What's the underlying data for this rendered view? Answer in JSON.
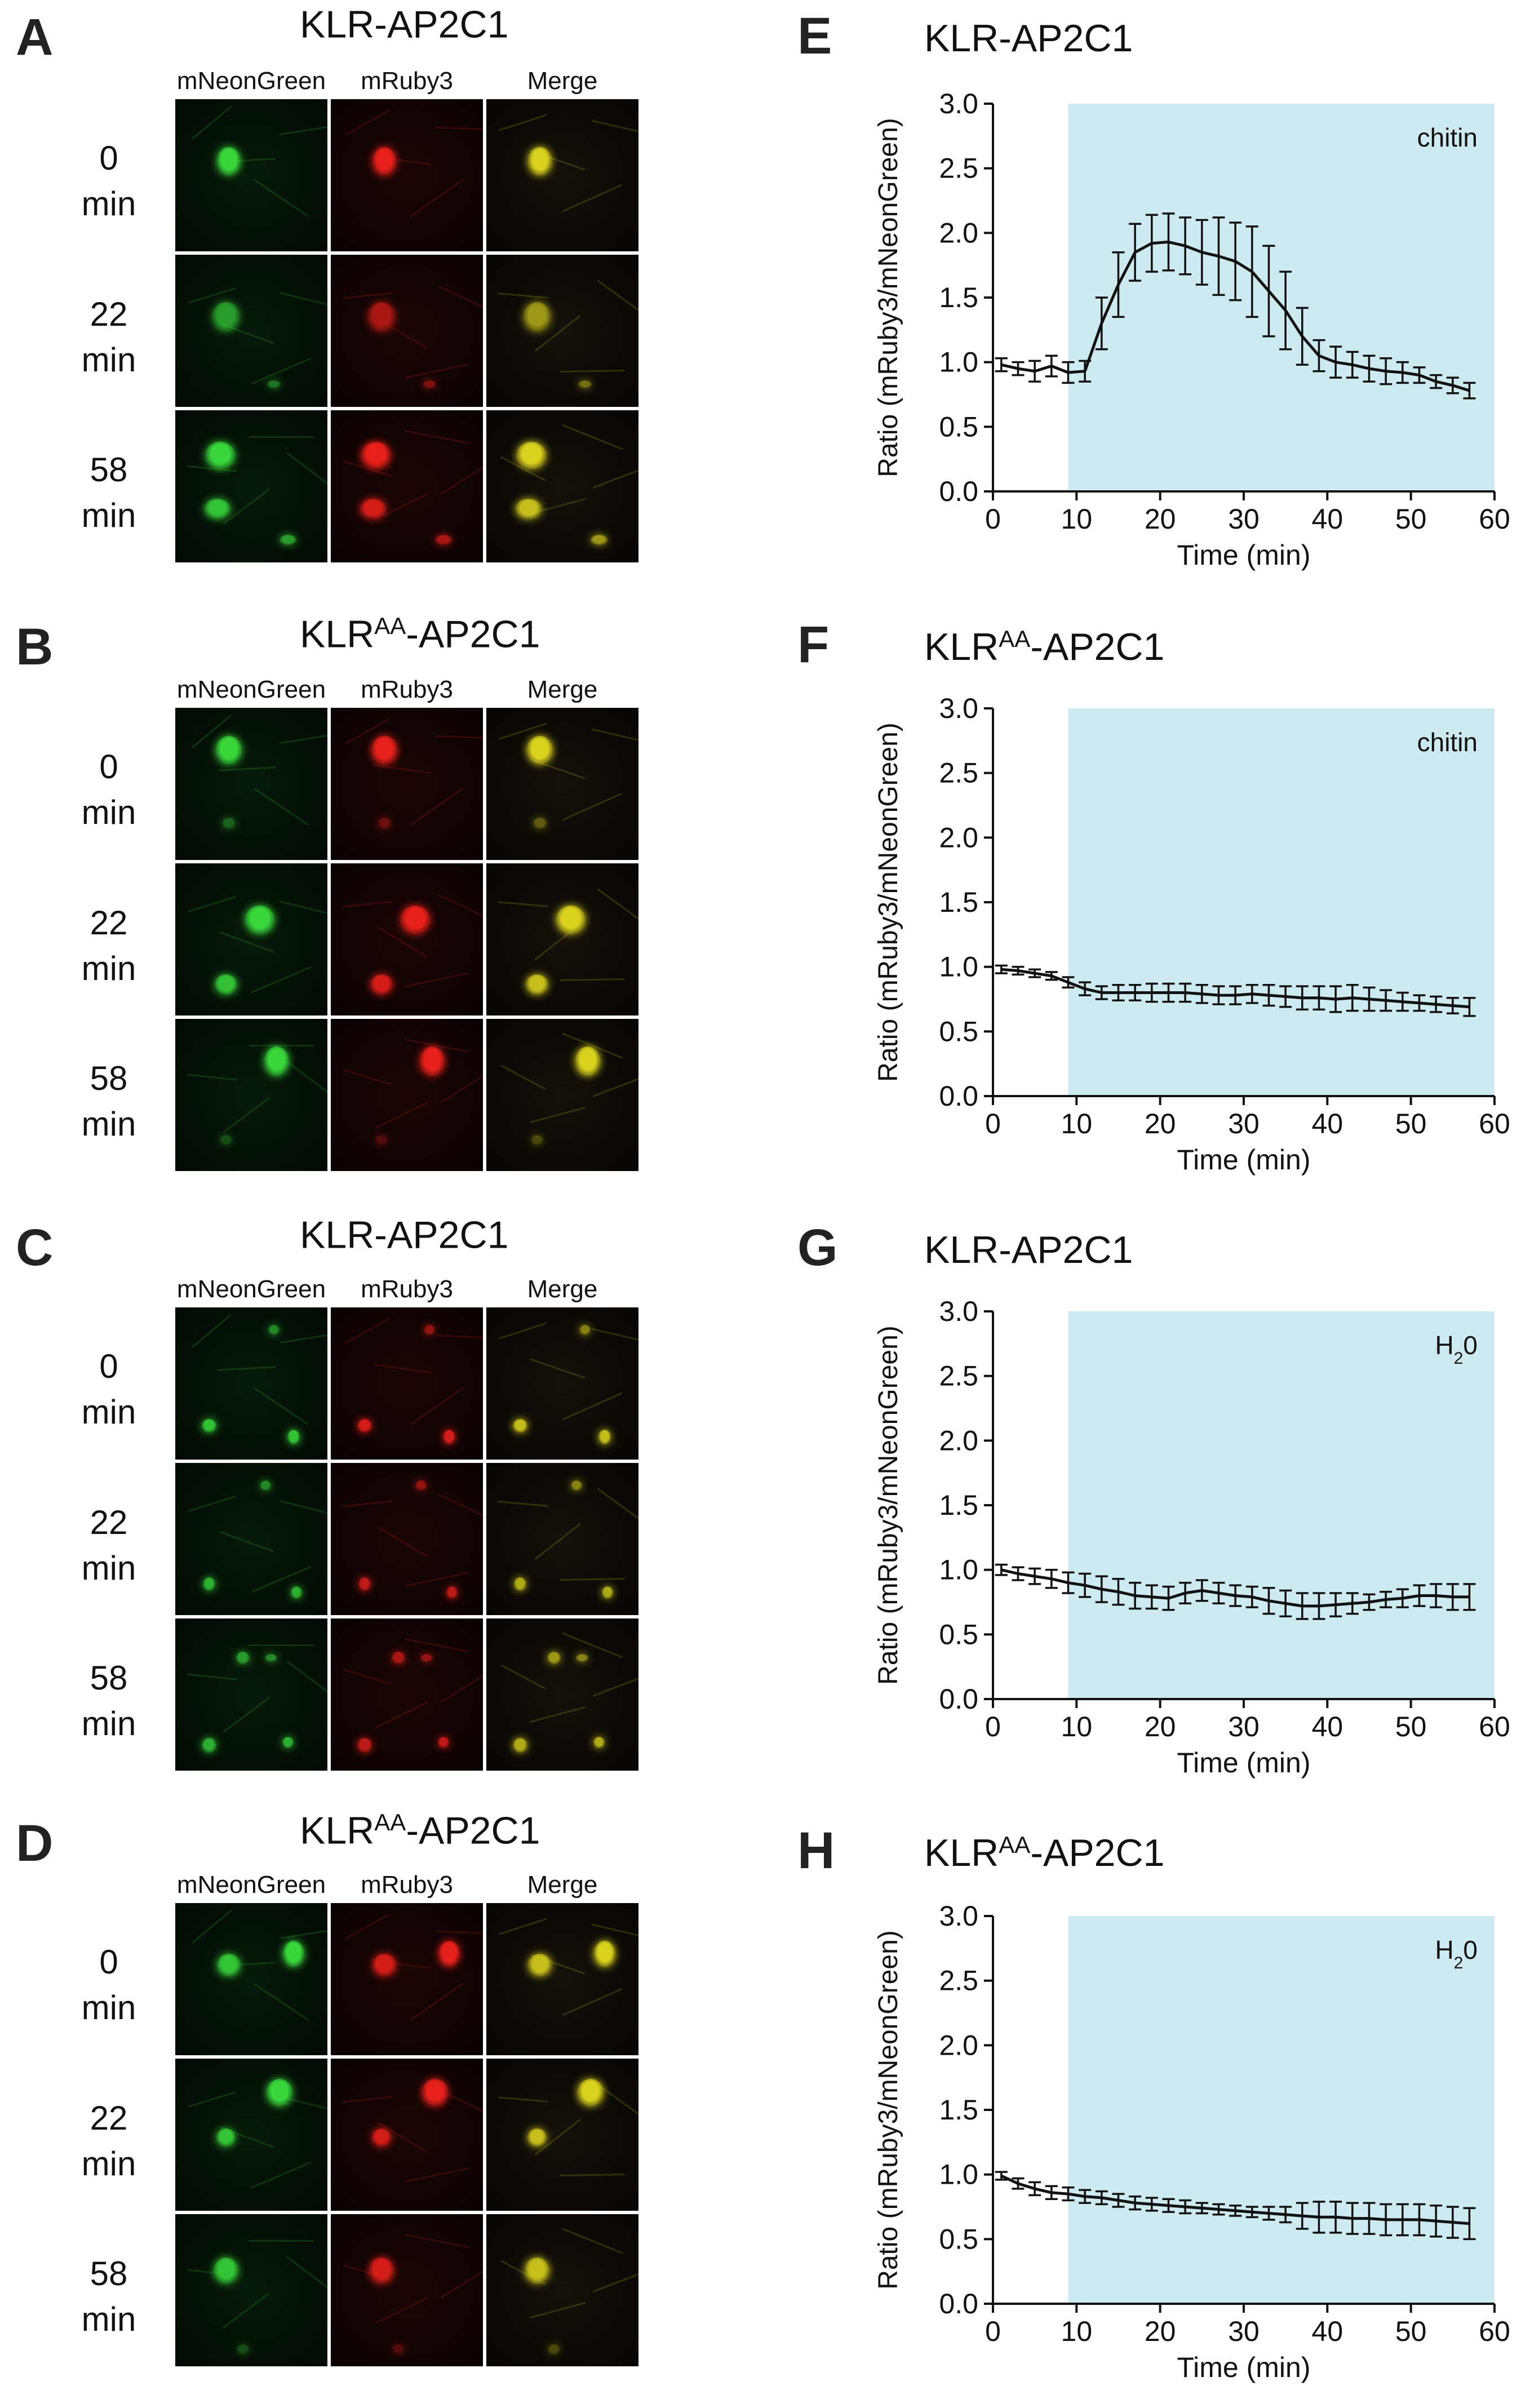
{
  "left_panels": [
    {
      "letter": "A",
      "title_main": "KLR",
      "title_sup": "",
      "title_rest": "-AP2C1"
    },
    {
      "letter": "B",
      "title_main": "KLR",
      "title_sup": "AA",
      "title_rest": "-AP2C1"
    },
    {
      "letter": "C",
      "title_main": "KLR",
      "title_sup": "",
      "title_rest": "-AP2C1"
    },
    {
      "letter": "D",
      "title_main": "KLR",
      "title_sup": "AA",
      "title_rest": "-AP2C1"
    }
  ],
  "channels": [
    "mNeonGreen",
    "mRuby3",
    "Merge"
  ],
  "timepoints": [
    {
      "value": "0",
      "unit": "min"
    },
    {
      "value": "22",
      "unit": "min"
    },
    {
      "value": "58",
      "unit": "min"
    }
  ],
  "colors": {
    "treatment_shade": "#cdeaf0",
    "green_channel": "#39d63c",
    "red_channel": "#e8201b",
    "merge_channel": "#d9d21f",
    "trace": "#111111"
  },
  "chart_data": [
    {
      "letter": "E",
      "type": "line",
      "title_main": "KLR",
      "title_sup": "",
      "title_rest": "-AP2C1",
      "annotation": "chitin",
      "annotation_sub": "",
      "xlabel": "Time (min)",
      "ylabel": "Ratio (mRuby3/mNeonGreen)",
      "xlim": [
        0,
        60
      ],
      "ylim": [
        0,
        3.0
      ],
      "xticks": [
        "0",
        "10",
        "20",
        "30",
        "40",
        "50",
        "60"
      ],
      "yticks": [
        "0.0",
        "0.5",
        "1.0",
        "1.5",
        "2.0",
        "2.5",
        "3.0"
      ],
      "treatment_start": 9,
      "x": [
        1,
        3,
        5,
        7,
        9,
        11,
        13,
        15,
        17,
        19,
        21,
        23,
        25,
        27,
        29,
        31,
        33,
        35,
        37,
        39,
        41,
        43,
        45,
        47,
        49,
        51,
        53,
        55,
        57
      ],
      "y": [
        0.98,
        0.95,
        0.93,
        0.97,
        0.92,
        0.93,
        1.3,
        1.6,
        1.85,
        1.92,
        1.93,
        1.9,
        1.85,
        1.82,
        1.78,
        1.7,
        1.55,
        1.4,
        1.2,
        1.05,
        1.0,
        0.98,
        0.95,
        0.93,
        0.92,
        0.9,
        0.85,
        0.82,
        0.78
      ],
      "err": [
        0.05,
        0.05,
        0.08,
        0.08,
        0.08,
        0.08,
        0.2,
        0.25,
        0.22,
        0.22,
        0.22,
        0.22,
        0.25,
        0.3,
        0.3,
        0.35,
        0.35,
        0.3,
        0.22,
        0.12,
        0.12,
        0.1,
        0.1,
        0.1,
        0.08,
        0.06,
        0.05,
        0.06,
        0.06
      ]
    },
    {
      "letter": "F",
      "type": "line",
      "title_main": "KLR",
      "title_sup": "AA",
      "title_rest": "-AP2C1",
      "annotation": "chitin",
      "annotation_sub": "",
      "xlabel": "Time (min)",
      "ylabel": "Ratio (mRuby3/mNeonGreen)",
      "xlim": [
        0,
        60
      ],
      "ylim": [
        0,
        3.0
      ],
      "xticks": [
        "0",
        "10",
        "20",
        "30",
        "40",
        "50",
        "60"
      ],
      "yticks": [
        "0.0",
        "0.5",
        "1.0",
        "1.5",
        "2.0",
        "2.5",
        "3.0"
      ],
      "treatment_start": 9,
      "x": [
        1,
        3,
        5,
        7,
        9,
        11,
        13,
        15,
        17,
        19,
        21,
        23,
        25,
        27,
        29,
        31,
        33,
        35,
        37,
        39,
        41,
        43,
        45,
        47,
        49,
        51,
        53,
        55,
        57
      ],
      "y": [
        0.98,
        0.97,
        0.95,
        0.93,
        0.88,
        0.83,
        0.8,
        0.8,
        0.8,
        0.8,
        0.8,
        0.8,
        0.79,
        0.78,
        0.78,
        0.79,
        0.78,
        0.77,
        0.76,
        0.76,
        0.75,
        0.76,
        0.75,
        0.74,
        0.73,
        0.72,
        0.71,
        0.7,
        0.69
      ],
      "err": [
        0.03,
        0.03,
        0.03,
        0.03,
        0.04,
        0.05,
        0.05,
        0.06,
        0.06,
        0.07,
        0.07,
        0.07,
        0.07,
        0.07,
        0.07,
        0.07,
        0.08,
        0.08,
        0.09,
        0.09,
        0.1,
        0.1,
        0.09,
        0.08,
        0.07,
        0.06,
        0.06,
        0.06,
        0.07
      ]
    },
    {
      "letter": "G",
      "type": "line",
      "title_main": "KLR",
      "title_sup": "",
      "title_rest": "-AP2C1",
      "annotation": "H",
      "annotation_sub": "2",
      "annotation_rest": "0",
      "xlabel": "Time (min)",
      "ylabel": "Ratio (mRuby3/mNeonGreen)",
      "xlim": [
        0,
        60
      ],
      "ylim": [
        0,
        3.0
      ],
      "xticks": [
        "0",
        "10",
        "20",
        "30",
        "40",
        "50",
        "60"
      ],
      "yticks": [
        "0.0",
        "0.5",
        "1.0",
        "1.5",
        "2.0",
        "2.5",
        "3.0"
      ],
      "treatment_start": 9,
      "x": [
        1,
        3,
        5,
        7,
        9,
        11,
        13,
        15,
        17,
        19,
        21,
        23,
        25,
        27,
        29,
        31,
        33,
        35,
        37,
        39,
        41,
        43,
        45,
        47,
        49,
        51,
        53,
        55,
        57
      ],
      "y": [
        1.0,
        0.97,
        0.95,
        0.93,
        0.9,
        0.88,
        0.85,
        0.83,
        0.8,
        0.79,
        0.78,
        0.82,
        0.84,
        0.82,
        0.8,
        0.79,
        0.76,
        0.74,
        0.72,
        0.72,
        0.73,
        0.74,
        0.75,
        0.77,
        0.78,
        0.8,
        0.8,
        0.79,
        0.79
      ],
      "err": [
        0.04,
        0.05,
        0.06,
        0.07,
        0.08,
        0.09,
        0.1,
        0.1,
        0.1,
        0.09,
        0.09,
        0.08,
        0.08,
        0.08,
        0.08,
        0.08,
        0.1,
        0.1,
        0.1,
        0.1,
        0.09,
        0.08,
        0.06,
        0.06,
        0.07,
        0.08,
        0.09,
        0.1,
        0.1
      ]
    },
    {
      "letter": "H",
      "type": "line",
      "title_main": "KLR",
      "title_sup": "AA",
      "title_rest": "-AP2C1",
      "annotation": "H",
      "annotation_sub": "2",
      "annotation_rest": "0",
      "xlabel": "Time (min)",
      "ylabel": "Ratio (mRuby3/mNeonGreen)",
      "xlim": [
        0,
        60
      ],
      "ylim": [
        0,
        3.0
      ],
      "xticks": [
        "0",
        "10",
        "20",
        "30",
        "40",
        "50",
        "60"
      ],
      "yticks": [
        "0.0",
        "0.5",
        "1.0",
        "1.5",
        "2.0",
        "2.5",
        "3.0"
      ],
      "treatment_start": 9,
      "x": [
        1,
        3,
        5,
        7,
        9,
        11,
        13,
        15,
        17,
        19,
        21,
        23,
        25,
        27,
        29,
        31,
        33,
        35,
        37,
        39,
        41,
        43,
        45,
        47,
        49,
        51,
        53,
        55,
        57
      ],
      "y": [
        0.99,
        0.93,
        0.89,
        0.86,
        0.85,
        0.83,
        0.82,
        0.8,
        0.78,
        0.77,
        0.76,
        0.75,
        0.74,
        0.73,
        0.72,
        0.71,
        0.7,
        0.69,
        0.68,
        0.67,
        0.67,
        0.66,
        0.66,
        0.65,
        0.65,
        0.65,
        0.64,
        0.63,
        0.62
      ],
      "err": [
        0.03,
        0.04,
        0.05,
        0.05,
        0.05,
        0.05,
        0.05,
        0.05,
        0.05,
        0.05,
        0.05,
        0.05,
        0.04,
        0.04,
        0.04,
        0.04,
        0.05,
        0.06,
        0.1,
        0.12,
        0.12,
        0.12,
        0.12,
        0.12,
        0.12,
        0.12,
        0.12,
        0.12,
        0.12
      ]
    }
  ]
}
